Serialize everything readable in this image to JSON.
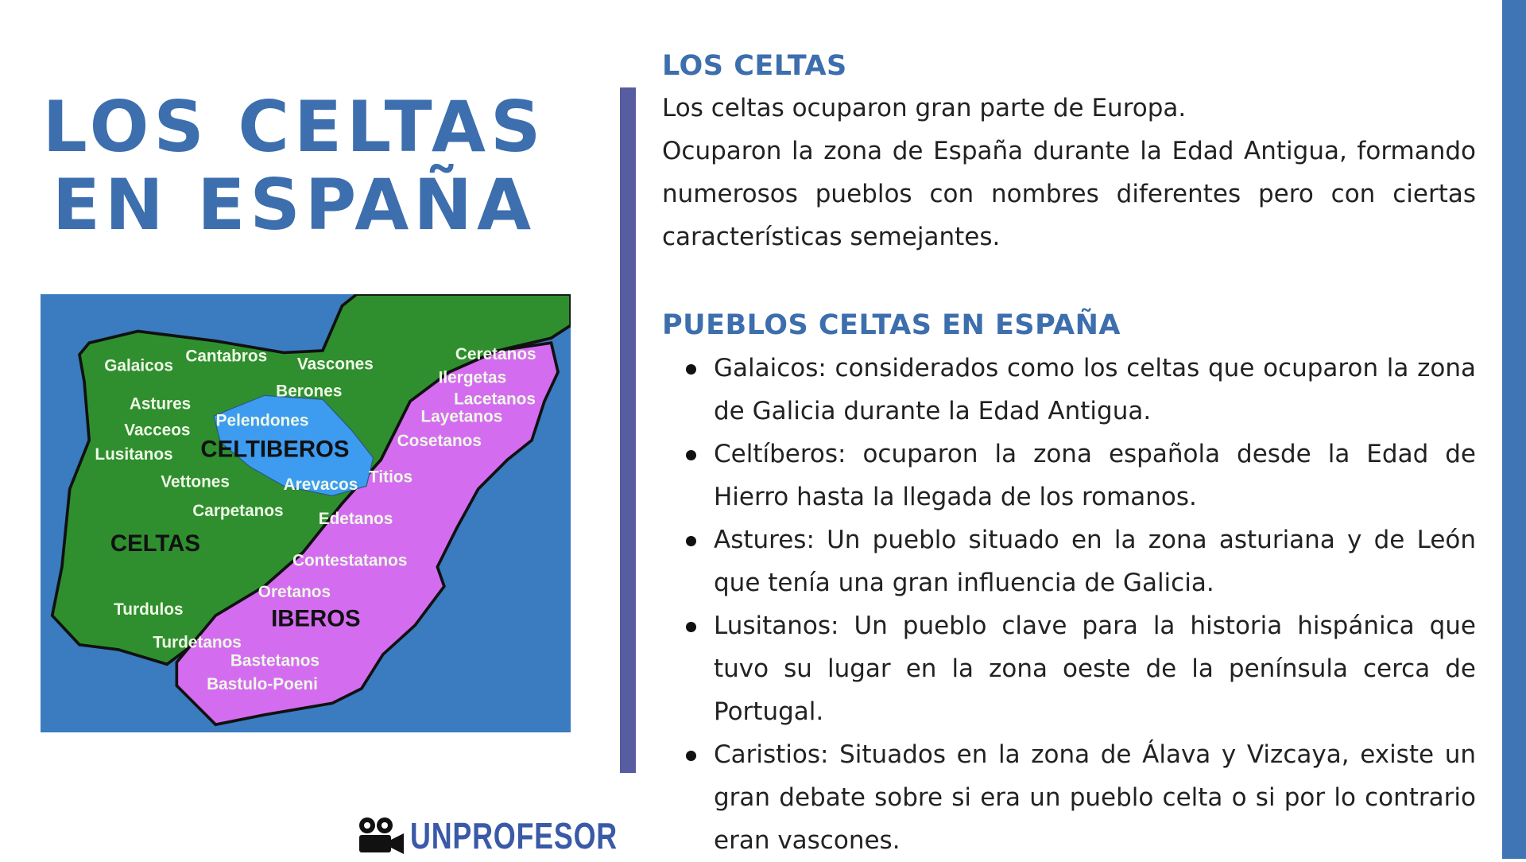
{
  "colors": {
    "accent": "#3d6ead",
    "divider": "#575da0",
    "edge_bar": "#3f74b5",
    "sea": "#3b7bbf",
    "celtas": "#2f8f2f",
    "iberos": "#d46cf0",
    "celtiberos": "#3d9cf0"
  },
  "title": {
    "line1": "LOS CELTAS",
    "line2": "EN ESPAÑA"
  },
  "section1": {
    "heading": "LOS CELTAS",
    "line1": "Los celtas ocuparon gran parte de Europa.",
    "paragraph": "Ocuparon la zona de España durante la Edad Antigua, formando numerosos pueblos con nombres diferentes pero con ciertas características semejantes."
  },
  "section2": {
    "heading": "PUEBLOS CELTAS EN ESPAÑA",
    "items": [
      "Galaicos: considerados como los celtas que ocuparon la zona de Galicia durante la Edad Antigua.",
      "Celtíberos: ocuparon la zona española desde la Edad de Hierro hasta la llegada de los romanos.",
      "Astures: Un pueblo situado en la zona asturiana y de León que tenía una gran influencia de Galicia.",
      "Lusitanos: Un pueblo clave para la historia hispánica que tuvo su lugar en la zona oeste de la península cerca de Portugal.",
      "Caristios: Situados en la zona de Álava y Vizcaya, existe un gran debate sobre si era un pueblo celta o si por lo contrario eran vascones."
    ]
  },
  "map": {
    "labels": [
      "Galaicos",
      "Cantabros",
      "Vascones",
      "Berones",
      "Astures",
      "Pelendones",
      "Vacceos",
      "Lusitanos",
      "CELTIBEROS",
      "Vettones",
      "Arevacos",
      "Titios",
      "Carpetanos",
      "Edetanos",
      "CELTAS",
      "Contestatanos",
      "Oretanos",
      "Turdulos",
      "IBEROS",
      "Turdetanos",
      "Bastetanos",
      "Bastulo-Poeni",
      "Ceretanos",
      "Ilergetas",
      "Lacetanos",
      "Layetanos",
      "Cosetanos"
    ]
  },
  "logo": {
    "text": "UNPROFESOR",
    "icon": "film-camera-icon"
  }
}
